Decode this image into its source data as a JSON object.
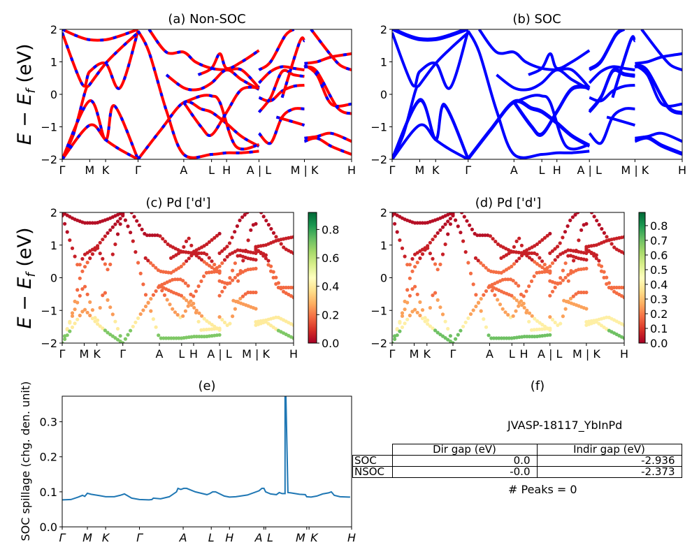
{
  "figure": {
    "material_label": "JVASP-18117_YbInPd",
    "peaks_label": "# Peaks = 0"
  },
  "chart_data": [
    {
      "id": "a",
      "type": "line",
      "title": "(a) Non-SOC",
      "ylabel": "E − E_f (eV)",
      "ylim": [
        -2,
        2
      ],
      "yticks": [
        "2",
        "1",
        "0",
        "−1",
        "−2"
      ],
      "ytick_values": [
        2,
        1,
        0,
        -1,
        -2
      ],
      "kpath_labels": [
        "Γ",
        "M",
        "K",
        "Γ",
        "A",
        "L",
        "H",
        "A | L",
        "M | K",
        "H"
      ],
      "kpath_positions": [
        0,
        0.095,
        0.15,
        0.262,
        0.42,
        0.516,
        0.568,
        0.68,
        0.837,
        1.0
      ],
      "style": "red line with blue dashes",
      "colors": {
        "primary": "#ff0000",
        "dash": "#0000ff"
      },
      "series": [
        {
          "name": "b1",
          "x": [
            0,
            0.05,
            0.095,
            0.15,
            0.2,
            0.262
          ],
          "y": [
            2,
            1.8,
            1.68,
            1.68,
            1.8,
            2
          ]
        },
        {
          "name": "b2",
          "x": [
            0,
            0.07,
            0.095,
            0.15,
            0.2,
            0.262
          ],
          "y": [
            1.9,
            0.3,
            0.7,
            0.95,
            0.2,
            1.95
          ]
        },
        {
          "name": "b3",
          "x": [
            0,
            0.04,
            0.08,
            0.095,
            0.15,
            0.2,
            0.262
          ],
          "y": [
            -2,
            -1.2,
            0.1,
            0.3,
            0.95,
            1.4,
            1.9
          ]
        },
        {
          "name": "b4",
          "x": [
            0,
            0.095,
            0.15,
            0.18,
            0.262
          ],
          "y": [
            -2,
            -0.2,
            -1.4,
            -0.35,
            -2
          ]
        },
        {
          "name": "b5",
          "x": [
            0,
            0.095,
            0.15,
            0.2,
            0.262
          ],
          "y": [
            -2,
            -0.95,
            -1.4,
            -1.7,
            -2
          ]
        },
        {
          "name": "b6",
          "x": [
            0.262,
            0.3,
            0.36,
            0.42,
            0.516,
            0.568,
            0.62,
            0.68
          ],
          "y": [
            1.95,
            1.3,
            -0.5,
            -1.85,
            -1.85,
            -1.8,
            -1.8,
            -1.75
          ]
        },
        {
          "name": "b7",
          "x": [
            0.262,
            0.34,
            0.42,
            0.48,
            0.516,
            0.568,
            0.62,
            0.68
          ],
          "y": [
            -2,
            -1.1,
            -0.25,
            -0.45,
            -0.55,
            -0.9,
            -1.3,
            -1.6
          ]
        },
        {
          "name": "b8",
          "x": [
            0.3,
            0.36,
            0.42,
            0.46,
            0.516,
            0.568,
            0.62,
            0.68
          ],
          "y": [
            2,
            1.3,
            1.3,
            1.0,
            0.8,
            0.75,
            0.75,
            0.2
          ]
        },
        {
          "name": "b9",
          "x": [
            0.36,
            0.42,
            0.47,
            0.516,
            0.568,
            0.62,
            0.68
          ],
          "y": [
            0.6,
            0.2,
            0.15,
            0.35,
            0.75,
            0.45,
            0.15
          ]
        },
        {
          "name": "b10",
          "x": [
            0.42,
            0.48,
            0.516,
            0.568,
            0.62,
            0.68
          ],
          "y": [
            -0.25,
            -1.0,
            -1.25,
            -0.55,
            0.15,
            0.2
          ]
        },
        {
          "name": "b11",
          "x": [
            0.47,
            0.516,
            0.545,
            0.568,
            0.62,
            0.68
          ],
          "y": [
            0.6,
            0.8,
            1.25,
            0.8,
            1.0,
            1.35
          ]
        },
        {
          "name": "b12",
          "x": [
            0.42,
            0.48,
            0.516,
            0.545,
            0.6,
            0.68
          ],
          "y": [
            -0.25,
            -0.05,
            -0.05,
            -0.25,
            -1.6,
            -1.55
          ]
        },
        {
          "name": "b13",
          "x": [
            0.68,
            0.72,
            0.77,
            0.8
          ],
          "y": [
            0.75,
            1.0,
            1.8,
            2.0
          ]
        },
        {
          "name": "b14",
          "x": [
            0.68,
            0.72,
            0.76,
            0.8,
            0.837
          ],
          "y": [
            0.35,
            0.7,
            0.85,
            0.8,
            0.75
          ]
        },
        {
          "name": "b15",
          "x": [
            0.68,
            0.72,
            0.76,
            0.8,
            0.837
          ],
          "y": [
            -0.1,
            -0.2,
            0.1,
            0.25,
            0.28
          ]
        },
        {
          "name": "b16",
          "x": [
            0.68,
            0.72,
            0.76,
            0.8,
            0.837
          ],
          "y": [
            -0.55,
            -0.1,
            0.7,
            0.6,
            0.55
          ]
        },
        {
          "name": "b17",
          "x": [
            0.68,
            0.72,
            0.76,
            0.8,
            0.837
          ],
          "y": [
            -1.2,
            -1.5,
            -0.7,
            -0.45,
            -0.45
          ]
        },
        {
          "name": "b18",
          "x": [
            0.74,
            0.78,
            0.837
          ],
          "y": [
            -0.7,
            -0.8,
            -0.95
          ]
        },
        {
          "name": "b19",
          "x": [
            0.76,
            0.82,
            0.837
          ],
          "y": [
            -0.1,
            1.6,
            1.65
          ]
        },
        {
          "name": "b20",
          "x": [
            0.837,
            0.88,
            0.93,
            1.0
          ],
          "y": [
            0.95,
            1.0,
            1.15,
            1.25
          ]
        },
        {
          "name": "b21",
          "x": [
            0.837,
            0.88,
            0.93,
            1.0
          ],
          "y": [
            0.9,
            0.6,
            -0.3,
            -0.3
          ]
        },
        {
          "name": "b22",
          "x": [
            0.837,
            0.88,
            0.95,
            1.0
          ],
          "y": [
            0.85,
            0.7,
            -0.4,
            -0.6
          ]
        },
        {
          "name": "b23",
          "x": [
            0.86,
            0.92,
            0.96,
            1.0
          ],
          "y": [
            2.0,
            1.3,
            0.9,
            0.75
          ]
        },
        {
          "name": "b24",
          "x": [
            0.837,
            0.88,
            0.93,
            1.0
          ],
          "y": [
            -1.35,
            -1.3,
            -1.2,
            -1.45
          ]
        },
        {
          "name": "b25",
          "x": [
            0.837,
            0.88,
            0.93,
            1.0
          ],
          "y": [
            -1.45,
            -1.35,
            -1.6,
            -1.85
          ]
        }
      ]
    },
    {
      "id": "b",
      "type": "line",
      "title": "(b) SOC",
      "ylim": [
        -2,
        2
      ],
      "yticks": [
        "2",
        "1",
        "0",
        "−1",
        "−2"
      ],
      "ytick_values": [
        2,
        1,
        0,
        -1,
        -2
      ],
      "kpath_labels": [
        "Γ",
        "M",
        "K",
        "Γ",
        "A",
        "L",
        "H",
        "A | L",
        "M | K",
        "H"
      ],
      "kpath_positions": [
        0,
        0.095,
        0.15,
        0.262,
        0.42,
        0.516,
        0.568,
        0.68,
        0.837,
        1.0
      ],
      "colors": {
        "primary": "#0000ff"
      },
      "series_ref": "same bands as (a), spin-orbit split"
    },
    {
      "id": "c",
      "type": "scatter",
      "title": "(c)  Pd ['d']",
      "ylabel": "E − E_f (eV)",
      "ylim": [
        -2,
        2
      ],
      "yticks": [
        "2",
        "1",
        "0",
        "−1",
        "−2"
      ],
      "ytick_values": [
        2,
        1,
        0,
        -1,
        -2
      ],
      "kpath_labels": [
        "Γ",
        "M",
        "K",
        "Γ",
        "A",
        "L",
        "H",
        "A | L",
        "M | K",
        "H"
      ],
      "kpath_positions": [
        0,
        0.095,
        0.15,
        0.262,
        0.42,
        0.516,
        0.568,
        0.68,
        0.837,
        1.0
      ],
      "colorbar": {
        "cmap": "RdYlGn",
        "range": [
          0.0,
          0.92
        ],
        "ticks": [
          "0.0",
          "0.2",
          "0.4",
          "0.6",
          "0.8"
        ],
        "tick_values": [
          0,
          0.2,
          0.4,
          0.6,
          0.8
        ]
      },
      "weight_note": "projection weight per band point (d-orbital of Pd)"
    },
    {
      "id": "d",
      "type": "scatter",
      "title": "(d) Pd ['d']",
      "ylim": [
        -2,
        2
      ],
      "yticks": [
        "2",
        "1",
        "0",
        "−1",
        "−2"
      ],
      "ytick_values": [
        2,
        1,
        0,
        -1,
        -2
      ],
      "kpath_labels": [
        "Γ",
        "M",
        "K",
        "Γ",
        "A",
        "L",
        "H",
        "A | L",
        "M | K",
        "H"
      ],
      "kpath_positions": [
        0,
        0.095,
        0.15,
        0.262,
        0.42,
        0.516,
        0.568,
        0.68,
        0.837,
        1.0
      ],
      "colorbar": {
        "cmap": "RdYlGn",
        "range": [
          0.0,
          0.89
        ],
        "ticks": [
          "0.0",
          "0.1",
          "0.2",
          "0.3",
          "0.4",
          "0.5",
          "0.6",
          "0.7",
          "0.8"
        ],
        "tick_values": [
          0,
          0.1,
          0.2,
          0.3,
          0.4,
          0.5,
          0.6,
          0.7,
          0.8
        ]
      }
    },
    {
      "id": "e",
      "type": "line",
      "title": "(e)",
      "ylabel": "SOC spillage (chg. den. unit)",
      "ylim": [
        0,
        0.373
      ],
      "yticks": [
        "0.0",
        "0.1",
        "0.2",
        "0.3"
      ],
      "ytick_values": [
        0,
        0.1,
        0.2,
        0.3
      ],
      "kpath_labels": [
        "Γ",
        "M",
        "K",
        "Γ",
        "A",
        "L",
        "H",
        "A",
        "L",
        "M",
        "K",
        "H"
      ],
      "kpath_positions": [
        0,
        0.087,
        0.15,
        0.267,
        0.418,
        0.515,
        0.578,
        0.697,
        0.703,
        0.845,
        0.853,
        1.0
      ],
      "colors": {
        "line": "#1f77b4"
      },
      "series": [
        {
          "name": "spillage",
          "x": [
            0,
            0.03,
            0.055,
            0.07,
            0.078,
            0.087,
            0.1,
            0.13,
            0.15,
            0.18,
            0.2,
            0.215,
            0.24,
            0.267,
            0.3,
            0.31,
            0.315,
            0.34,
            0.37,
            0.395,
            0.4,
            0.41,
            0.42,
            0.43,
            0.46,
            0.5,
            0.51,
            0.52,
            0.53,
            0.56,
            0.578,
            0.6,
            0.64,
            0.68,
            0.69,
            0.697,
            0.703,
            0.72,
            0.74,
            0.75,
            0.76,
            0.77,
            0.77,
            0.77,
            0.773,
            0.78,
            0.79,
            0.82,
            0.84,
            0.845,
            0.86,
            0.88,
            0.9,
            0.92,
            0.93,
            0.94,
            0.96,
            0.99,
            0.995
          ],
          "y": [
            0.077,
            0.078,
            0.085,
            0.09,
            0.087,
            0.096,
            0.093,
            0.089,
            0.086,
            0.086,
            0.09,
            0.094,
            0.082,
            0.078,
            0.077,
            0.078,
            0.082,
            0.08,
            0.086,
            0.1,
            0.11,
            0.107,
            0.11,
            0.11,
            0.1,
            0.092,
            0.095,
            0.1,
            0.1,
            0.088,
            0.085,
            0.086,
            0.091,
            0.103,
            0.11,
            0.11,
            0.1,
            0.094,
            0.092,
            0.098,
            0.095,
            0.095,
            0.2,
            0.373,
            0.373,
            0.098,
            0.097,
            0.093,
            0.092,
            0.086,
            0.085,
            0.088,
            0.094,
            0.097,
            0.1,
            0.09,
            0.086,
            0.085,
            0.085
          ]
        }
      ]
    },
    {
      "id": "f",
      "type": "table",
      "title": "(f)",
      "columns": [
        "",
        "Dir gap (eV)",
        "Indir gap (eV)"
      ],
      "rows": [
        {
          "label": "SOC",
          "dir_gap": "0.0",
          "indir_gap": "-2.936"
        },
        {
          "label": "NSOC",
          "dir_gap": "-0.0",
          "indir_gap": "-2.373"
        }
      ]
    }
  ]
}
